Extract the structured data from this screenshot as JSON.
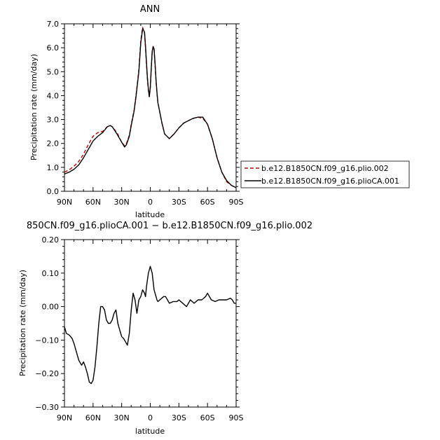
{
  "chart_data": [
    {
      "type": "line",
      "title": "ANN",
      "xlabel": "latitude",
      "ylabel": "Precipitation rate (mm/day)",
      "xlim": [
        90,
        -90
      ],
      "ylim": [
        0,
        7
      ],
      "xticks": [
        90,
        60,
        30,
        0,
        -30,
        -60,
        -90
      ],
      "xtick_labels": [
        "90N",
        "60N",
        "30N",
        "0",
        "30S",
        "60S",
        "90S"
      ],
      "yticks": [
        0,
        1,
        2,
        3,
        4,
        5,
        6,
        7
      ],
      "ytick_labels": [
        "0.0",
        "1.0",
        "2.0",
        "3.0",
        "4.0",
        "5.0",
        "6.0",
        "7.0"
      ],
      "grid": false,
      "legend_position": "right",
      "series": [
        {
          "name": "b.e12.B1850CN.f09_g16.plio.002",
          "color": "#cc0000",
          "dash": "dashed",
          "x": [
            90,
            85,
            80,
            75,
            70,
            65,
            60,
            55,
            50,
            45,
            42,
            40,
            35,
            30,
            27,
            25,
            22,
            20,
            17,
            15,
            12,
            10,
            8,
            6,
            5,
            4,
            3,
            2,
            1,
            0,
            -1,
            -2,
            -3,
            -4,
            -5,
            -6,
            -7,
            -8,
            -10,
            -12,
            -15,
            -20,
            -25,
            -30,
            -35,
            -40,
            -45,
            -50,
            -55,
            -60,
            -65,
            -70,
            -75,
            -80,
            -85,
            -90
          ],
          "y": [
            0.8,
            0.9,
            1.05,
            1.25,
            1.55,
            1.95,
            2.3,
            2.45,
            2.5,
            2.7,
            2.75,
            2.7,
            2.45,
            2.05,
            1.9,
            2.0,
            2.35,
            2.8,
            3.4,
            4.0,
            5.1,
            6.3,
            6.85,
            6.6,
            6.0,
            5.3,
            4.7,
            4.2,
            3.95,
            4.3,
            5.1,
            5.8,
            6.05,
            5.9,
            5.3,
            4.6,
            4.1,
            3.7,
            3.3,
            2.9,
            2.4,
            2.2,
            2.4,
            2.65,
            2.85,
            2.95,
            3.05,
            3.1,
            3.05,
            2.8,
            2.2,
            1.4,
            0.8,
            0.4,
            0.25,
            0.15
          ]
        },
        {
          "name": "b.e12.B1850CN.f09_g16.plioCA.001",
          "color": "#000000",
          "dash": "solid",
          "x": [
            90,
            85,
            80,
            75,
            70,
            65,
            60,
            55,
            50,
            45,
            42,
            40,
            35,
            30,
            27,
            25,
            22,
            20,
            17,
            15,
            12,
            10,
            8,
            6,
            5,
            4,
            3,
            2,
            1,
            0,
            -1,
            -2,
            -3,
            -4,
            -5,
            -6,
            -7,
            -8,
            -10,
            -12,
            -15,
            -20,
            -25,
            -30,
            -35,
            -40,
            -45,
            -50,
            -55,
            -60,
            -65,
            -70,
            -75,
            -80,
            -85,
            -90
          ],
          "y": [
            0.72,
            0.8,
            0.92,
            1.1,
            1.4,
            1.75,
            2.1,
            2.3,
            2.45,
            2.7,
            2.75,
            2.7,
            2.4,
            2.05,
            1.85,
            1.95,
            2.3,
            2.75,
            3.35,
            3.95,
            5.0,
            6.2,
            6.8,
            6.65,
            6.05,
            5.35,
            4.75,
            4.25,
            3.95,
            4.35,
            5.15,
            5.85,
            6.05,
            5.95,
            5.35,
            4.65,
            4.15,
            3.7,
            3.3,
            2.9,
            2.4,
            2.2,
            2.4,
            2.65,
            2.85,
            2.95,
            3.05,
            3.1,
            3.1,
            2.8,
            2.2,
            1.4,
            0.8,
            0.45,
            0.25,
            0.15
          ]
        }
      ]
    },
    {
      "type": "line",
      "title": "850CN.f09_g16.plioCA.001 − b.e12.B1850CN.f09_g16.plio.002",
      "xlabel": "latitude",
      "ylabel": "Precipitation rate (mm/day)",
      "xlim": [
        90,
        -90
      ],
      "ylim": [
        -0.3,
        0.2
      ],
      "xticks": [
        90,
        60,
        30,
        0,
        -30,
        -60,
        -90
      ],
      "xtick_labels": [
        "90N",
        "60N",
        "30N",
        "0",
        "30S",
        "60S",
        "90S"
      ],
      "yticks": [
        -0.3,
        -0.2,
        -0.1,
        0.0,
        0.1,
        0.2
      ],
      "ytick_labels": [
        "−0.30",
        "−0.20",
        "−0.10",
        "0.00",
        "0.10",
        "0.20"
      ],
      "grid": false,
      "series": [
        {
          "color": "#000000",
          "dash": "solid",
          "x": [
            90,
            88,
            85,
            82,
            80,
            78,
            75,
            72,
            70,
            68,
            66,
            64,
            62,
            60,
            58,
            56,
            54,
            52,
            50,
            48,
            46,
            44,
            42,
            40,
            38,
            36,
            34,
            32,
            30,
            28,
            26,
            24,
            22,
            20,
            18,
            16,
            14,
            12,
            10,
            8,
            6,
            5,
            4,
            2,
            0,
            -2,
            -4,
            -6,
            -7,
            -8,
            -10,
            -12,
            -14,
            -16,
            -18,
            -20,
            -24,
            -28,
            -30,
            -34,
            -38,
            -42,
            -46,
            -50,
            -54,
            -58,
            -60,
            -64,
            -68,
            -72,
            -76,
            -80,
            -84,
            -86,
            -88,
            -90
          ],
          "y": [
            -0.06,
            -0.08,
            -0.085,
            -0.095,
            -0.11,
            -0.13,
            -0.16,
            -0.175,
            -0.165,
            -0.18,
            -0.2,
            -0.225,
            -0.23,
            -0.22,
            -0.18,
            -0.12,
            -0.05,
            0.0,
            0.0,
            -0.01,
            -0.04,
            -0.05,
            -0.05,
            -0.04,
            -0.02,
            -0.01,
            -0.05,
            -0.07,
            -0.09,
            -0.095,
            -0.105,
            -0.115,
            -0.08,
            -0.01,
            0.04,
            0.02,
            -0.02,
            0.02,
            0.03,
            0.05,
            0.04,
            0.03,
            0.06,
            0.1,
            0.12,
            0.1,
            0.05,
            0.03,
            0.02,
            0.015,
            0.02,
            0.025,
            0.03,
            0.03,
            0.02,
            0.01,
            0.015,
            0.015,
            0.02,
            0.01,
            0.0,
            0.02,
            0.01,
            0.02,
            0.02,
            0.03,
            0.04,
            0.02,
            0.015,
            0.02,
            0.02,
            0.02,
            0.025,
            0.02,
            0.01,
            0.01
          ]
        }
      ]
    }
  ]
}
